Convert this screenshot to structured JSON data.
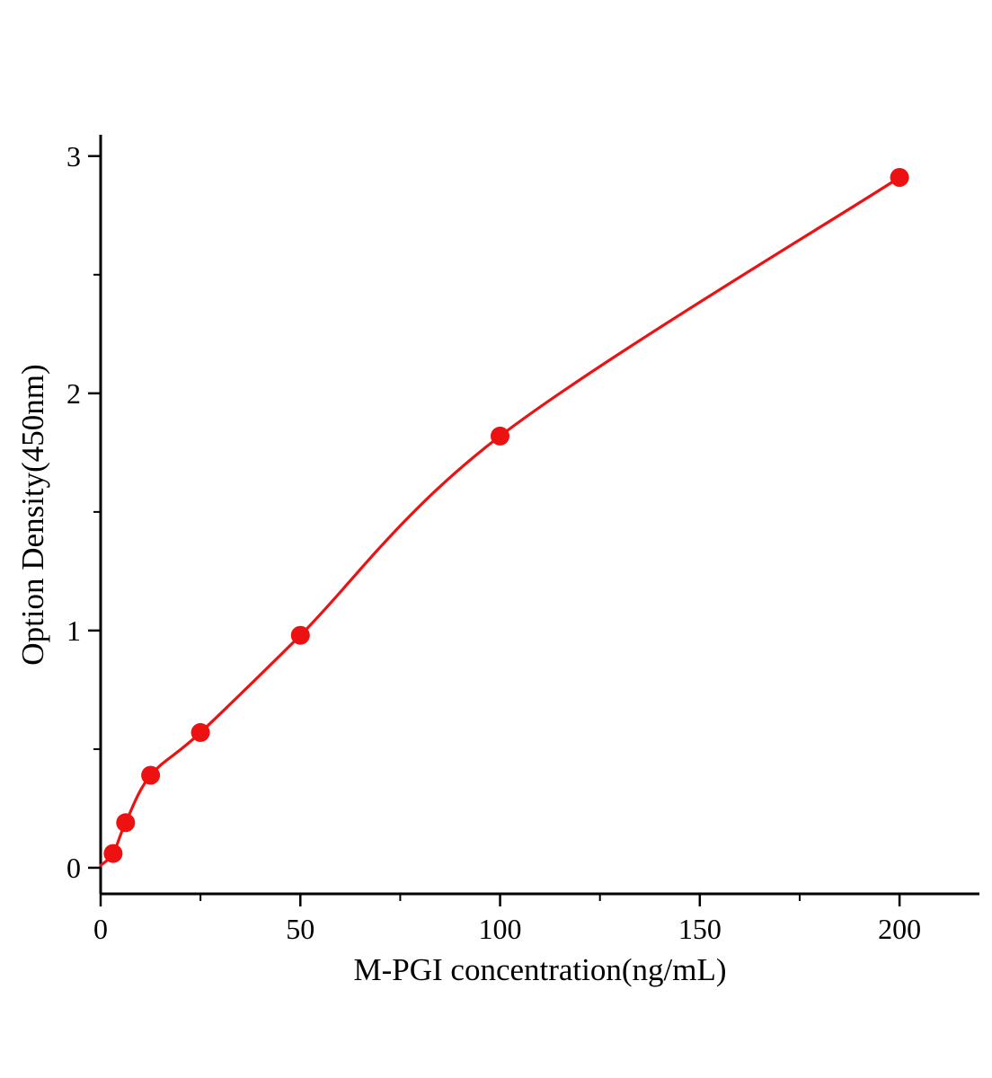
{
  "chart_data": {
    "type": "scatter",
    "title": "",
    "xlabel": "M-PGI concentration(ng/mL)",
    "ylabel": "Option Density(450nm)",
    "x": [
      3.125,
      6.25,
      12.5,
      25,
      50,
      100,
      200
    ],
    "y": [
      0.06,
      0.19,
      0.39,
      0.57,
      0.98,
      1.82,
      2.91
    ],
    "curve_start": {
      "x": 0,
      "y": 0.01
    },
    "x_ticks_major": [
      0,
      50,
      100,
      150,
      200
    ],
    "x_tick_labels": [
      "0",
      "50",
      "100",
      "150",
      "200"
    ],
    "x_ticks_minor": [
      25,
      75,
      125,
      175
    ],
    "y_ticks_major": [
      0,
      1,
      2,
      3
    ],
    "y_tick_labels": [
      "0",
      "1",
      "2",
      "3"
    ],
    "y_ticks_minor": [
      0.5,
      1.5,
      2.5
    ],
    "xlim": [
      0,
      220
    ],
    "ylim": [
      -0.11,
      3.09
    ],
    "marker_color": "#ee1111",
    "line_color": "#ee1111",
    "axis_color": "#000000",
    "grid": false,
    "legend": "none"
  }
}
